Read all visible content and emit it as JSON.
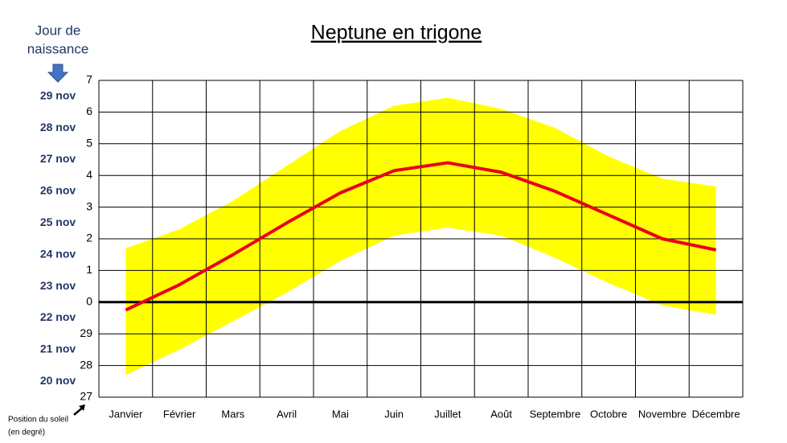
{
  "chart_data": {
    "type": "line",
    "title": "Neptune en trigone",
    "left_title": [
      "Jour de",
      "naissance"
    ],
    "corner_note": [
      "Position du soleil",
      "(en degré)"
    ],
    "categories": [
      "Janvier",
      "Février",
      "Mars",
      "Avril",
      "Mai",
      "Juin",
      "Juillet",
      "Août",
      "Septembre",
      "Octobre",
      "Novembre",
      "Décembre"
    ],
    "series": [
      {
        "color": "#e8001c",
        "values": [
          -0.25,
          0.55,
          1.5,
          2.5,
          3.45,
          4.15,
          4.4,
          4.1,
          3.5,
          2.75,
          2.0,
          1.65
        ]
      }
    ],
    "band": {
      "color": "#ffff00",
      "upper": [
        1.7,
        2.3,
        3.2,
        4.3,
        5.4,
        6.2,
        6.45,
        6.1,
        5.5,
        4.6,
        3.9,
        3.65
      ],
      "lower": [
        -2.3,
        -1.5,
        -0.6,
        0.3,
        1.3,
        2.1,
        2.35,
        2.1,
        1.4,
        0.6,
        -0.1,
        -0.4
      ]
    },
    "ylim": [
      -3,
      7
    ],
    "yticks": [
      {
        "value": -3,
        "label": "27"
      },
      {
        "value": -2,
        "label": "28"
      },
      {
        "value": -1,
        "label": "29"
      },
      0,
      1,
      2,
      3,
      4,
      5,
      6,
      7
    ],
    "birthday_ticks": [
      {
        "value": -2.5,
        "label": "20 nov"
      },
      {
        "value": -1.5,
        "label": "21 nov"
      },
      {
        "value": -0.5,
        "label": "22 nov"
      },
      {
        "value": 0.5,
        "label": "23 nov"
      },
      {
        "value": 1.5,
        "label": "24 nov"
      },
      {
        "value": 2.5,
        "label": "25 nov"
      },
      {
        "value": 3.5,
        "label": "26 nov"
      },
      {
        "value": 4.5,
        "label": "27 nov"
      },
      {
        "value": 5.5,
        "label": "28 nov"
      },
      {
        "value": 6.5,
        "label": "29 nov"
      }
    ],
    "grid": true
  }
}
